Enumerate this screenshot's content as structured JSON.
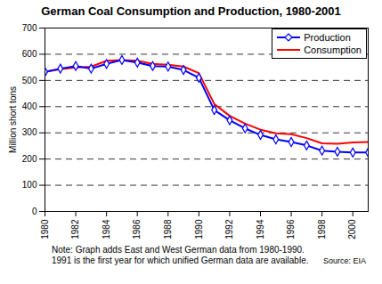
{
  "chart_data": {
    "type": "line",
    "title": "German Coal Consumption and Production, 1980-2001",
    "y_label": "Million short tons",
    "x": [
      1980,
      1981,
      1982,
      1983,
      1984,
      1985,
      1986,
      1987,
      1988,
      1989,
      1990,
      1991,
      1992,
      1993,
      1994,
      1995,
      1996,
      1997,
      1998,
      1999,
      2000,
      2001
    ],
    "series": [
      {
        "name": "Production",
        "color": "#0000ff",
        "marker": "diamond",
        "values": [
          533,
          545,
          555,
          545,
          563,
          578,
          568,
          555,
          553,
          540,
          510,
          387,
          348,
          317,
          292,
          275,
          265,
          252,
          232,
          228,
          225,
          225
        ]
      },
      {
        "name": "Consumption",
        "color": "#ff0000",
        "marker": "none",
        "values": [
          533,
          543,
          550,
          552,
          575,
          578,
          575,
          563,
          560,
          553,
          528,
          410,
          365,
          335,
          312,
          298,
          295,
          280,
          260,
          258,
          263,
          265
        ]
      }
    ],
    "xlim": [
      1980,
      2001
    ],
    "xticks": [
      1980,
      1982,
      1984,
      1986,
      1988,
      1990,
      1992,
      1994,
      1996,
      1998,
      2000
    ],
    "ylim": [
      0,
      700
    ],
    "yticks": [
      0,
      100,
      200,
      300,
      400,
      500,
      600,
      700
    ],
    "grid": true,
    "legend": "top-right",
    "annotations": [
      "Note: Graph adds East and West German data from 1980-1990.",
      "1991 is the first year for which unified German data are available.",
      "Source: EIA"
    ]
  }
}
